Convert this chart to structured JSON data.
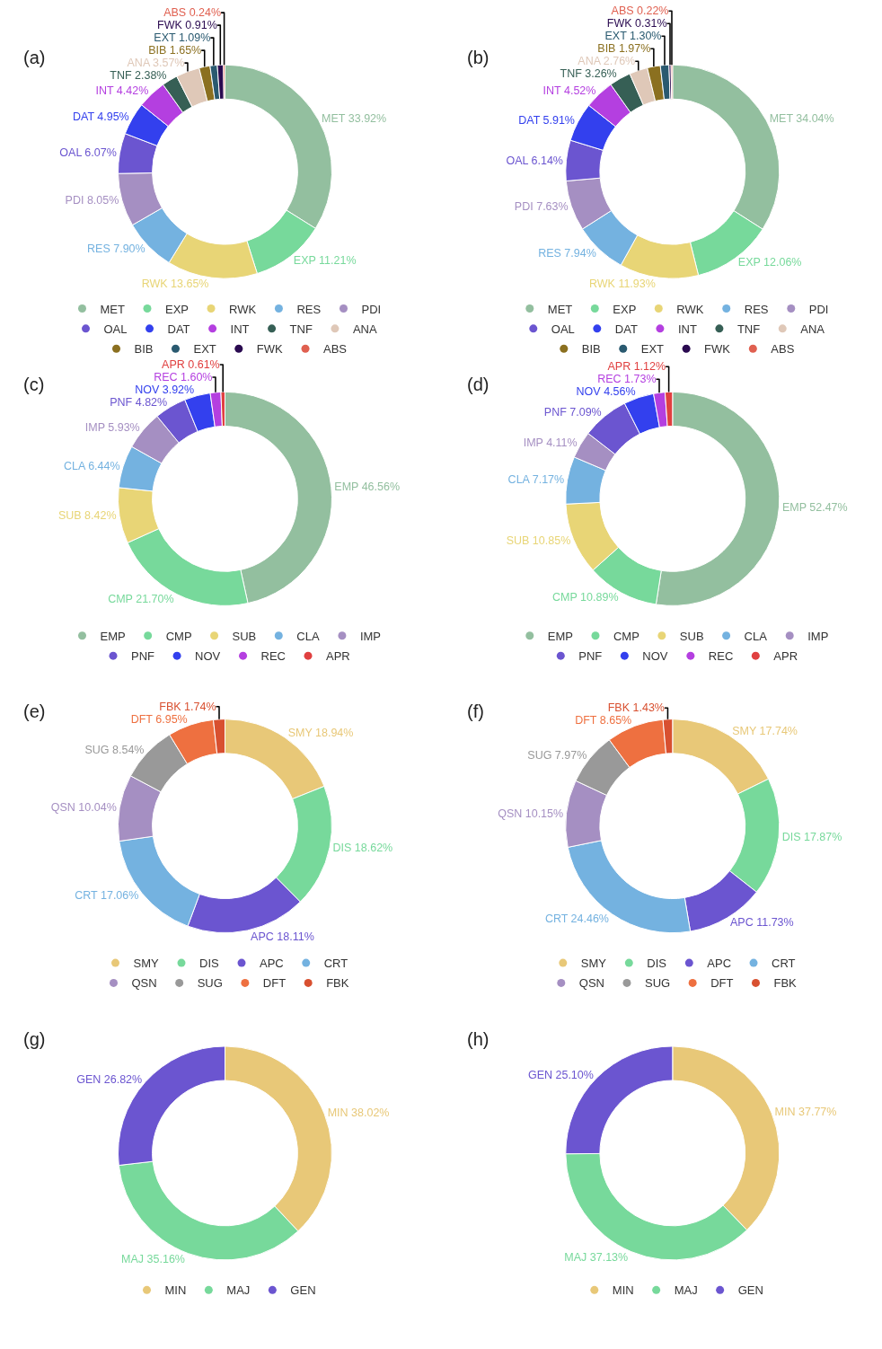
{
  "chart_data": [
    {
      "type": "donut",
      "title": "(a)",
      "legend": "bottom",
      "categories": [
        "MET",
        "EXP",
        "RWK",
        "RES",
        "PDI",
        "OAL",
        "DAT",
        "INT",
        "TNF",
        "ANA",
        "BIB",
        "EXT",
        "FWK",
        "ABS"
      ],
      "values": [
        33.92,
        11.21,
        13.65,
        7.9,
        8.05,
        6.07,
        4.95,
        4.42,
        2.38,
        3.57,
        1.65,
        1.09,
        0.91,
        0.24
      ],
      "colors": [
        "#93bf9f",
        "#77d99b",
        "#e8d576",
        "#74b2e0",
        "#a58fc2",
        "#6b55d0",
        "#3340ee",
        "#b43fe0",
        "#365f55",
        "#dfc8b8",
        "#8b7020",
        "#2a5a70",
        "#2a0a50",
        "#e06050"
      ],
      "value_labels": [
        "MET 33.92%",
        "EXP 11.21%",
        "RWK 13.65%",
        "RES 7.90%",
        "PDI 8.05%",
        "OAL 6.07%",
        "DAT 4.95%",
        "INT 4.42%",
        "TNF 2.38%",
        "ANA 3.57%",
        "BIB 1.65%",
        "EXT 1.09%",
        "FWK 0.91%",
        "ABS 0.24%"
      ]
    },
    {
      "type": "donut",
      "title": "(b)",
      "legend": "bottom",
      "categories": [
        "MET",
        "EXP",
        "RWK",
        "RES",
        "PDI",
        "OAL",
        "DAT",
        "INT",
        "TNF",
        "ANA",
        "BIB",
        "EXT",
        "FWK",
        "ABS"
      ],
      "values": [
        34.04,
        12.06,
        11.93,
        7.94,
        7.63,
        6.14,
        5.91,
        4.52,
        3.26,
        2.76,
        1.97,
        1.3,
        0.31,
        0.22
      ],
      "colors": [
        "#93bf9f",
        "#77d99b",
        "#e8d576",
        "#74b2e0",
        "#a58fc2",
        "#6b55d0",
        "#3340ee",
        "#b43fe0",
        "#365f55",
        "#dfc8b8",
        "#8b7020",
        "#2a5a70",
        "#2a0a50",
        "#e06050"
      ],
      "value_labels": [
        "MET 34.04%",
        "EXP 12.06%",
        "RWK 11.93%",
        "RES 7.94%",
        "PDI 7.63%",
        "OAL 6.14%",
        "DAT 5.91%",
        "INT 4.52%",
        "TNF 3.26%",
        "ANA 2.76%",
        "BIB 1.97%",
        "EXT 1.30%",
        "FWK 0.31%",
        "ABS 0.22%"
      ]
    },
    {
      "type": "donut",
      "title": "(c)",
      "legend": "bottom",
      "categories": [
        "EMP",
        "CMP",
        "SUB",
        "CLA",
        "IMP",
        "PNF",
        "NOV",
        "REC",
        "APR"
      ],
      "values": [
        46.56,
        21.7,
        8.42,
        6.44,
        5.93,
        4.82,
        3.92,
        1.6,
        0.61
      ],
      "colors": [
        "#93bf9f",
        "#77d99b",
        "#e8d576",
        "#74b2e0",
        "#a58fc2",
        "#6b55d0",
        "#3340ee",
        "#b43fe0",
        "#e04040"
      ],
      "value_labels": [
        "EMP 46.56%",
        "CMP 21.70%",
        "SUB 8.42%",
        "CLA 6.44%",
        "IMP 5.93%",
        "PNF 4.82%",
        "NOV 3.92%",
        "REC 1.60%",
        "APR 0.61%"
      ]
    },
    {
      "type": "donut",
      "title": "(d)",
      "legend": "bottom",
      "categories": [
        "EMP",
        "CMP",
        "SUB",
        "CLA",
        "IMP",
        "PNF",
        "NOV",
        "REC",
        "APR"
      ],
      "values": [
        52.47,
        10.89,
        10.85,
        7.17,
        4.11,
        7.09,
        4.56,
        1.73,
        1.12
      ],
      "colors": [
        "#93bf9f",
        "#77d99b",
        "#e8d576",
        "#74b2e0",
        "#a58fc2",
        "#6b55d0",
        "#3340ee",
        "#b43fe0",
        "#e04040"
      ],
      "value_labels": [
        "EMP 52.47%",
        "CMP 10.89%",
        "SUB 10.85%",
        "CLA 7.17%",
        "IMP 4.11%",
        "PNF 7.09%",
        "NOV 4.56%",
        "REC 1.73%",
        "APR 1.12%"
      ]
    },
    {
      "type": "donut",
      "title": "(e)",
      "legend": "bottom",
      "categories": [
        "SMY",
        "DIS",
        "APC",
        "CRT",
        "QSN",
        "SUG",
        "DFT",
        "FBK"
      ],
      "values": [
        18.94,
        18.62,
        18.11,
        17.06,
        10.04,
        8.54,
        6.95,
        1.74
      ],
      "colors": [
        "#e8c878",
        "#77d99b",
        "#6b55d0",
        "#74b2e0",
        "#a58fc2",
        "#999999",
        "#ee7040",
        "#d85030"
      ],
      "value_labels": [
        "SMY 18.94%",
        "DIS 18.62%",
        "APC 18.11%",
        "CRT 17.06%",
        "QSN 10.04%",
        "SUG 8.54%",
        "DFT 6.95%",
        "FBK 1.74%"
      ]
    },
    {
      "type": "donut",
      "title": "(f)",
      "legend": "bottom",
      "categories": [
        "SMY",
        "DIS",
        "APC",
        "CRT",
        "QSN",
        "SUG",
        "DFT",
        "FBK"
      ],
      "values": [
        17.74,
        17.87,
        11.73,
        24.46,
        10.15,
        7.97,
        8.65,
        1.43
      ],
      "colors": [
        "#e8c878",
        "#77d99b",
        "#6b55d0",
        "#74b2e0",
        "#a58fc2",
        "#999999",
        "#ee7040",
        "#d85030"
      ],
      "value_labels": [
        "SMY 17.74%",
        "DIS 17.87%",
        "APC 11.73%",
        "CRT 24.46%",
        "QSN 10.15%",
        "SUG 7.97%",
        "DFT 8.65%",
        "FBK 1.43%"
      ]
    },
    {
      "type": "donut",
      "title": "(g)",
      "legend": "bottom",
      "categories": [
        "MIN",
        "MAJ",
        "GEN"
      ],
      "values": [
        38.02,
        35.16,
        26.82
      ],
      "colors": [
        "#e8c878",
        "#77d99b",
        "#6b55d0"
      ],
      "value_labels": [
        "MIN 38.02%",
        "MAJ 35.16%",
        "GEN 26.82%"
      ]
    },
    {
      "type": "donut",
      "title": "(h)",
      "legend": "bottom",
      "categories": [
        "MIN",
        "MAJ",
        "GEN"
      ],
      "values": [
        37.77,
        37.13,
        25.1
      ],
      "colors": [
        "#e8c878",
        "#77d99b",
        "#6b55d0"
      ],
      "value_labels": [
        "MIN 37.77%",
        "MAJ 37.13%",
        "GEN 25.10%"
      ]
    }
  ]
}
